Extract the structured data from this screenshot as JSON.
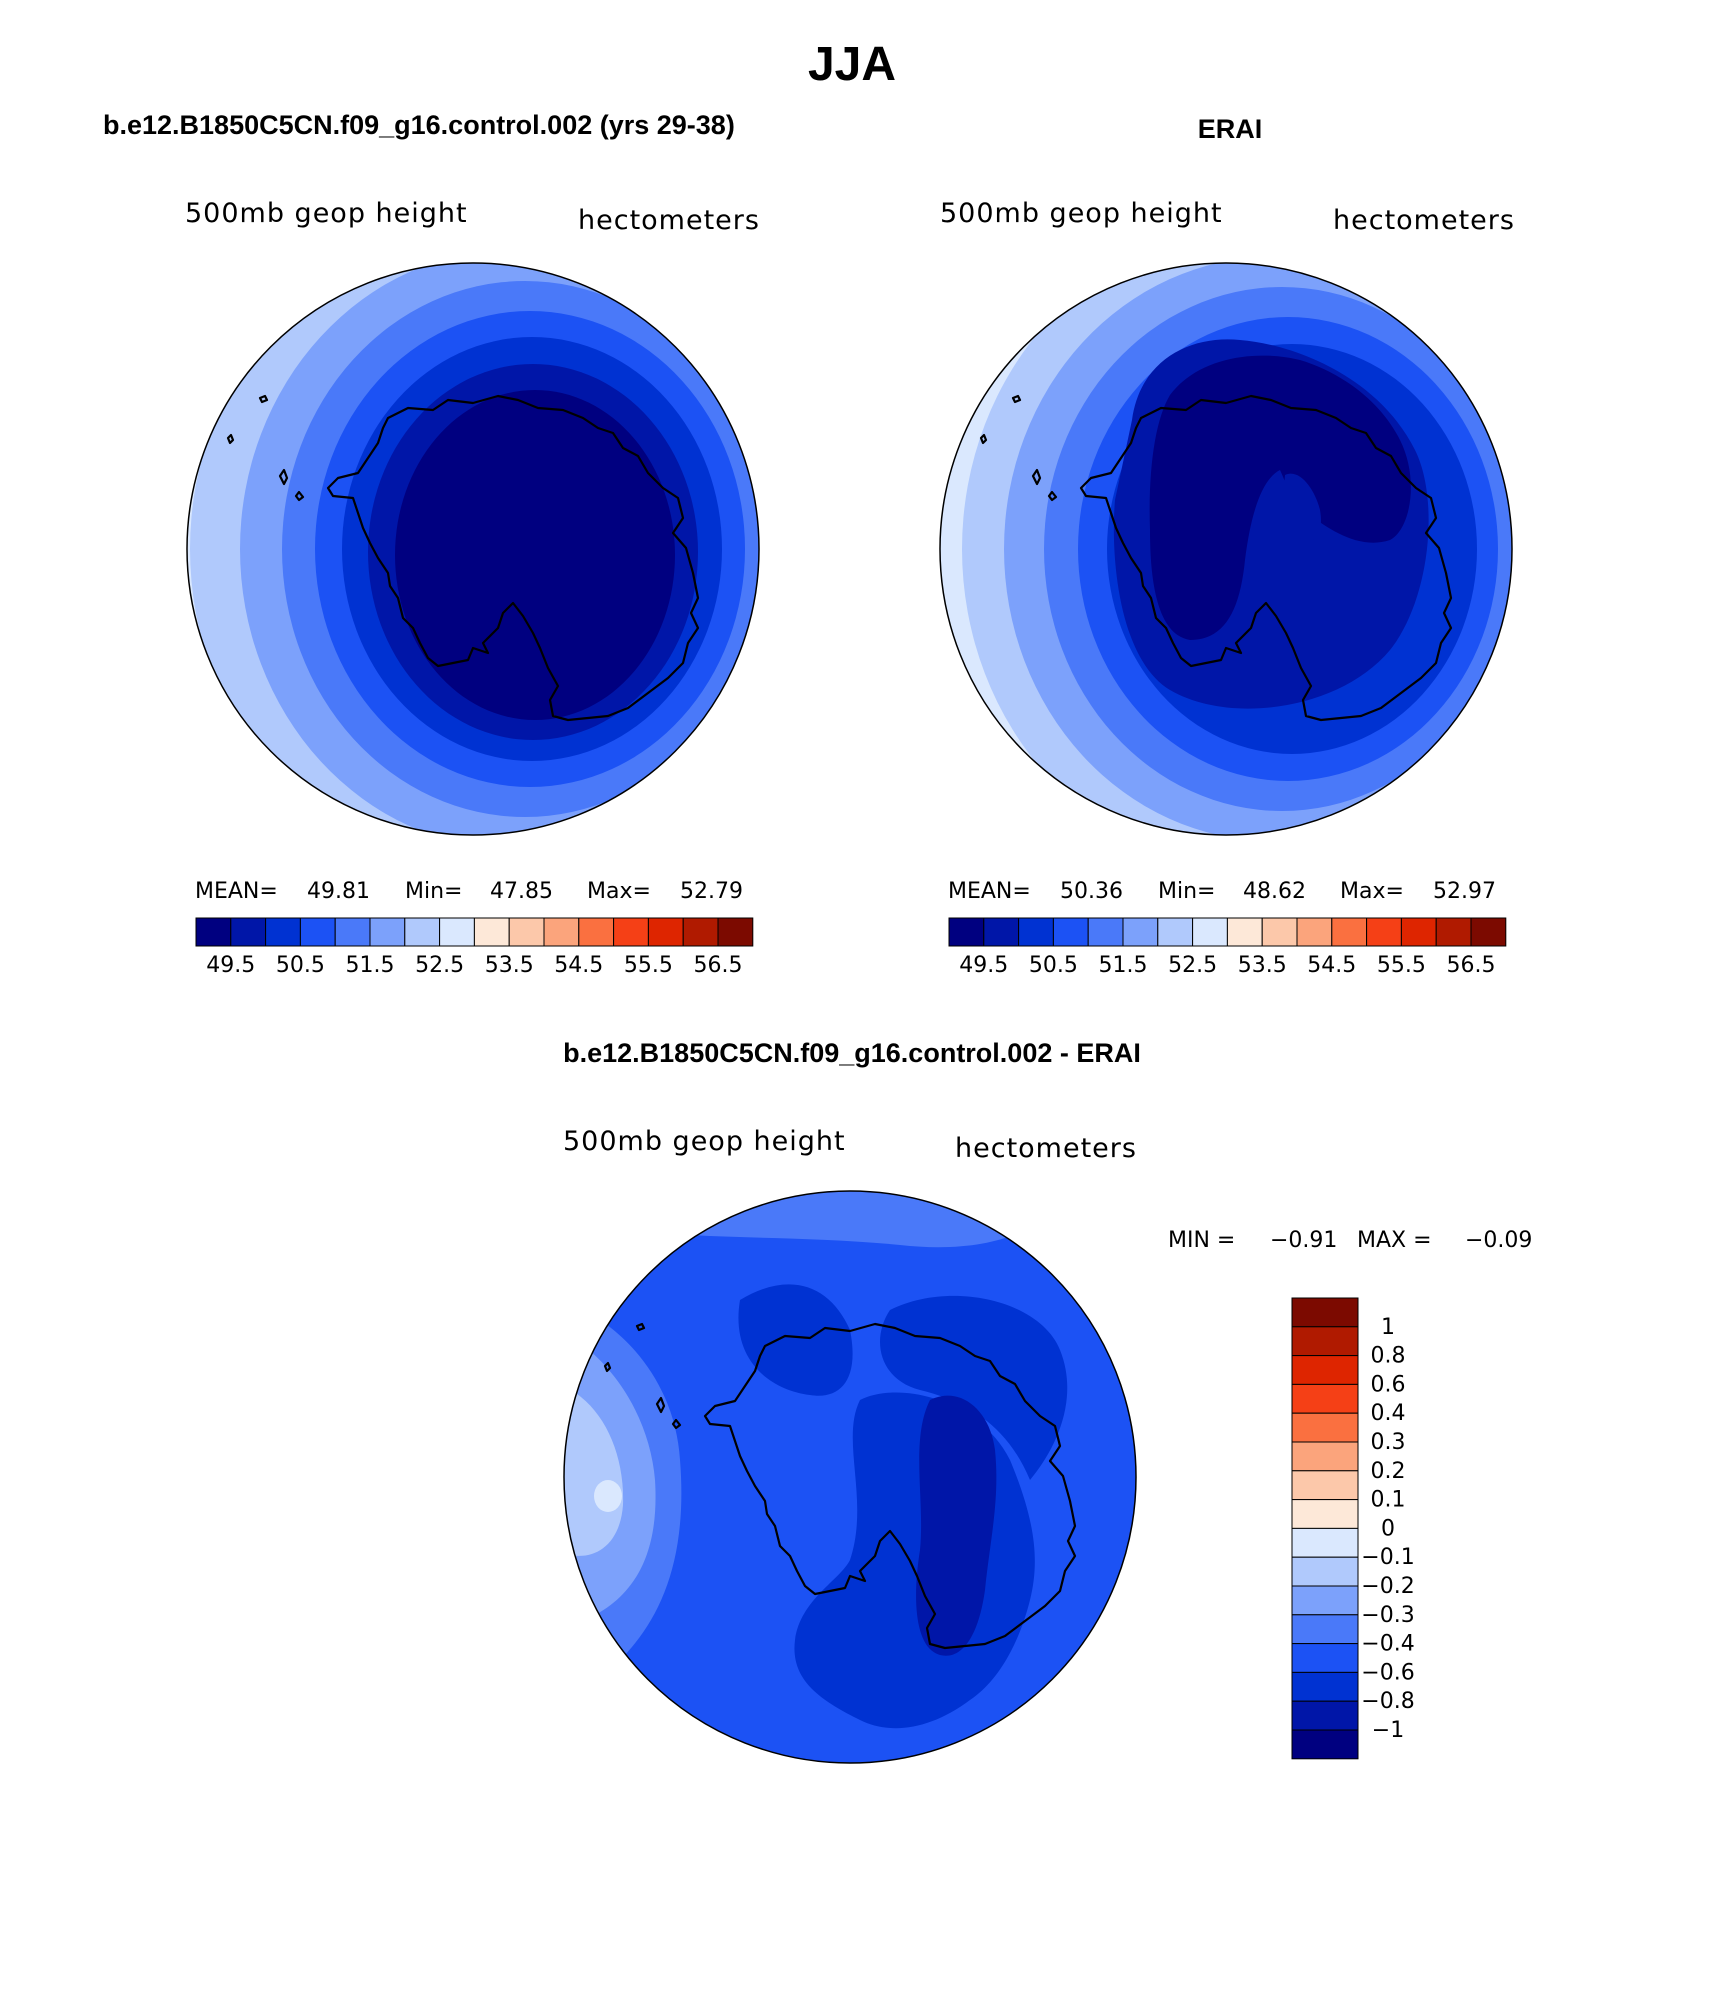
{
  "page_title": "JJA",
  "colors": {
    "mean_scale": [
      "#000080",
      "#0016a8",
      "#0032d2",
      "#1c52f4",
      "#4a79f9",
      "#7ca1fb",
      "#b0c9fc",
      "#dae8fe",
      "#fde8d8",
      "#fcc8aa",
      "#fba47c",
      "#fa7040",
      "#f54016",
      "#de2500",
      "#b01a00",
      "#7c0a00"
    ],
    "diff_scale": [
      "#7c0a00",
      "#b01a00",
      "#de2500",
      "#f54016",
      "#fa7040",
      "#fba47c",
      "#fcc8aa",
      "#fde8d8",
      "#dae8fe",
      "#b0c9fc",
      "#7ca1fb",
      "#4a79f9",
      "#1c52f4",
      "#0032d2",
      "#0016a8",
      "#000080"
    ]
  },
  "chart_data": [
    {
      "type": "heatmap",
      "projection": "polar-stereographic-south",
      "title": "b.e12.B1850C5CN.f09_g16.control.002 (yrs 29-38)",
      "left_label": "500mb geop height",
      "right_label": "hectometers",
      "stats": {
        "mean_label": "MEAN=",
        "mean": "49.81",
        "min_label": "Min=",
        "min": "47.85",
        "max_label": "Max=",
        "max": "52.79"
      },
      "colorbar_ticks": [
        "49.5",
        "50.5",
        "51.5",
        "52.5",
        "53.5",
        "54.5",
        "55.5",
        "56.5"
      ],
      "levels": [
        49.5,
        50,
        50.5,
        51,
        51.5,
        52,
        52.5,
        53,
        53.5,
        54,
        54.5,
        55,
        55.5,
        56,
        56.5
      ]
    },
    {
      "type": "heatmap",
      "projection": "polar-stereographic-south",
      "title": "ERAI",
      "left_label": "500mb geop height",
      "right_label": "hectometers",
      "stats": {
        "mean_label": "MEAN=",
        "mean": "50.36",
        "min_label": "Min=",
        "min": "48.62",
        "max_label": "Max=",
        "max": "52.97"
      },
      "colorbar_ticks": [
        "49.5",
        "50.5",
        "51.5",
        "52.5",
        "53.5",
        "54.5",
        "55.5",
        "56.5"
      ],
      "levels": [
        49.5,
        50,
        50.5,
        51,
        51.5,
        52,
        52.5,
        53,
        53.5,
        54,
        54.5,
        55,
        55.5,
        56,
        56.5
      ]
    },
    {
      "type": "heatmap",
      "projection": "polar-stereographic-south",
      "title": "b.e12.B1850C5CN.f09_g16.control.002 - ERAI",
      "left_label": "500mb geop height",
      "right_label": "hectometers",
      "stats": {
        "min_label": "MIN =",
        "min": "−0.91",
        "max_label": "MAX =",
        "max": "−0.09"
      },
      "colorbar_ticks": [
        "1",
        "0.8",
        "0.6",
        "0.4",
        "0.3",
        "0.2",
        "0.1",
        "0",
        "−0.1",
        "−0.2",
        "−0.3",
        "−0.4",
        "−0.6",
        "−0.8",
        "−1"
      ],
      "levels": [
        1,
        0.8,
        0.6,
        0.4,
        0.3,
        0.2,
        0.1,
        0,
        -0.1,
        -0.2,
        -0.3,
        -0.4,
        -0.6,
        -0.8,
        -1
      ]
    }
  ]
}
